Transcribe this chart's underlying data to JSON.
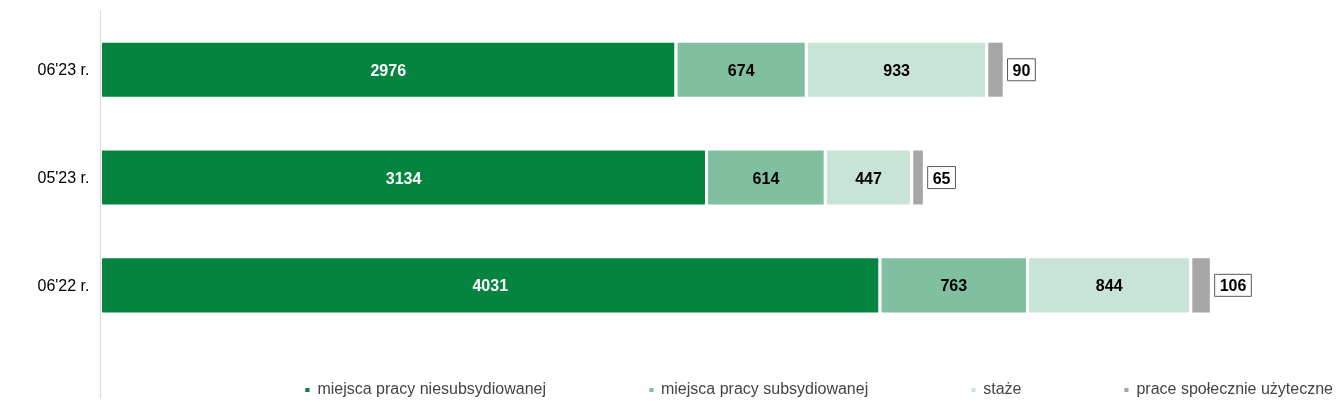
{
  "chart_data": {
    "type": "bar",
    "orientation": "horizontal",
    "stacked": true,
    "data_labels": true,
    "legend": "bottom",
    "grid": false,
    "categories": [
      "06'23 r.",
      "05'23 r.",
      "06'22 r."
    ],
    "series": [
      {
        "name": "miejsca pracy niesubsydiowanej",
        "color": "#05843f",
        "values": [
          2976,
          3134,
          4031
        ]
      },
      {
        "name": "miejsca pracy subsydiowanej",
        "color": "#80bf9f",
        "values": [
          674,
          614,
          763
        ]
      },
      {
        "name": "staże",
        "color": "#c8e4d6",
        "values": [
          933,
          447,
          844
        ]
      },
      {
        "name": "prace społecznie użyteczne",
        "color": "#a6a6a6",
        "values": [
          90,
          65,
          106
        ]
      }
    ]
  }
}
